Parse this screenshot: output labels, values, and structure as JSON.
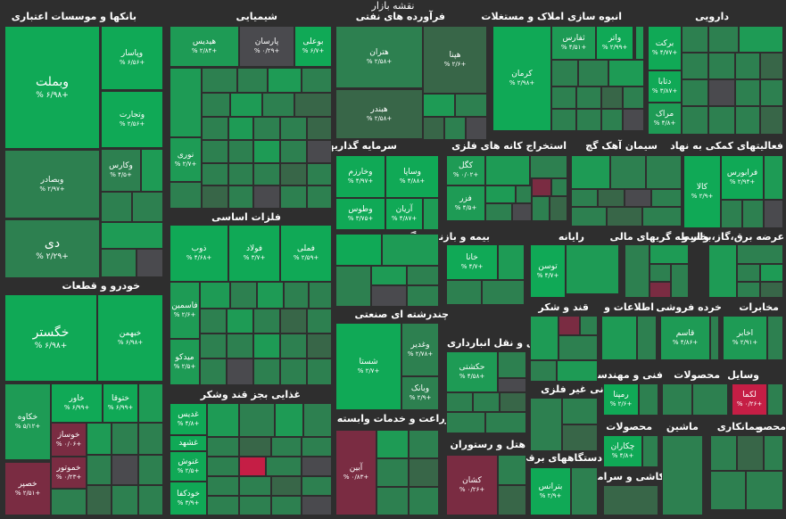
{
  "title": "نقشه بازار",
  "colors": {
    "strong_green": "#10a956",
    "green": "#1e9b55",
    "mid_green": "#2d8050",
    "dark_green": "#386648",
    "neutral": "#4a4a4e",
    "red": "#7a2c42",
    "bright_red": "#c51e45",
    "background": "#2e2e2e"
  },
  "sectors": {
    "banks": "بانکها و موسسات اعتباری",
    "chemical": "شیمیایی",
    "oil": "فرآورده های نفتی",
    "realestate": "انبوه سازی املاک و مستغلات",
    "pharma": "دارویی",
    "investment": "سرمایه گذاریها",
    "metal_ext": "استخراج کانه های فلزی",
    "cement": "سیمان آهک گچ",
    "aux_finance": "فعالیتهای کمکی به نهاد",
    "basic_metals": "فلزات اساسی",
    "insurance": "بیمه و بازنشستگی",
    "computer": "رایانه",
    "fin_intermed": "واسطه گریهای مالی",
    "utility": "عرضه برق،گاز،بخار و",
    "auto": "خودرو و قطعات",
    "sugar": "قند و شکر",
    "telecom": "اطلاعات و",
    "retail": "خرده فروشی",
    "comm": "مخابرات",
    "multi": "چندرشته ای صنعتی",
    "transport": "حمل و نقل انبارداری",
    "food": "غذایی بجز قند وشکر",
    "nonmetal": "کانی غیر فلزی",
    "engineering": "فنی و مهندسی",
    "products": "محصولات",
    "vehicles": "وسایل",
    "agri": "زراعت و خدمات وابسته",
    "hotel": "هتل و رستوران",
    "products2": "محصولات",
    "machinery": "ماشین",
    "insurance2": "بیمانکاری",
    "crops": "محصو",
    "elec_devices": "دستگاههای برقی",
    "tiles": "کاشی و سرامیک"
  },
  "tiles": {
    "vbmellat": {
      "symbol": "وبملت",
      "pct": "% ۶/۹۸+"
    },
    "vbsader": {
      "symbol": "وبصادر",
      "pct": "% ۲/۹۷+"
    },
    "dey": {
      "symbol": "دی",
      "pct": "% ۲/۲۹+"
    },
    "vpasar": {
      "symbol": "وپاسار",
      "pct": "% ۶/۵۶+"
    },
    "vtejarat": {
      "symbol": "وتجارت",
      "pct": "% ۲/۵۶+"
    },
    "vkaris": {
      "symbol": "وکارس",
      "pct": "% ۴/۵+"
    },
    "hedis": {
      "symbol": "هیدیس",
      "pct": "% ۲/۸۴+"
    },
    "parsan": {
      "symbol": "پارسان",
      "pct": "% ۰/۲۹+"
    },
    "boali": {
      "symbol": "بوعلی",
      "pct": "% ۶/۷+"
    },
    "nouri": {
      "symbol": "نوری",
      "pct": "% ۲/۷+"
    },
    "hetran": {
      "symbol": "هتران",
      "pct": "% ۲/۵۸+"
    },
    "hbndr": {
      "symbol": "هبندر",
      "pct": "% ۲/۵۸+"
    },
    "hpina": {
      "symbol": "هپنا",
      "pct": "% ۲/۶+"
    },
    "tfars": {
      "symbol": "ثفارس",
      "pct": "% ۴/۵۱+"
    },
    "vaatar": {
      "symbol": "واتر",
      "pct": "% ۲/۹۹+"
    },
    "kerman": {
      "symbol": "کرمان",
      "pct": "% ۲/۹۸+"
    },
    "barket": {
      "symbol": "برکت",
      "pct": "% ۴/۷۷+"
    },
    "dtaba": {
      "symbol": "دتابا",
      "pct": "% ۳/۸۷+"
    },
    "merak": {
      "symbol": "مراک",
      "pct": "% ۴/۸+"
    },
    "vkharaz": {
      "symbol": "وخارزم",
      "pct": "% ۴/۹۷+"
    },
    "vsapa": {
      "symbol": "وساپا",
      "pct": "% ۴/۸۸+"
    },
    "vatoosi": {
      "symbol": "وطوس",
      "pct": "% ۳/۷۵+"
    },
    "arian": {
      "symbol": "آریان",
      "pct": "% ۴/۸۷+"
    },
    "kegel": {
      "symbol": "کگل",
      "pct": "% ۰/۰۲+"
    },
    "fazar": {
      "symbol": "فزر",
      "pct": "% ۴/۵+"
    },
    "kala": {
      "symbol": "کالا",
      "pct": "% ۲/۹+"
    },
    "faraboors": {
      "symbol": "فرابورس",
      "pct": "% ۲/۹۴+"
    },
    "foolad": {
      "symbol": "فولاد",
      "pct": "% ۳/۷+"
    },
    "zob": {
      "symbol": "ذوب",
      "pct": "% ۴/۶۸+"
    },
    "fameli": {
      "symbol": "فملی",
      "pct": "% ۲/۵۹+"
    },
    "khana": {
      "symbol": "خانا",
      "pct": "% ۴/۷+"
    },
    "tosan": {
      "symbol": "توسن",
      "pct": "% ۴/۷+"
    },
    "khegostar": {
      "symbol": "خگستر",
      "pct": "% ۶/۹۸+"
    },
    "khbahman": {
      "symbol": "خبهمن",
      "pct": "% ۶/۹۸+"
    },
    "khakava": {
      "symbol": "خکاوه",
      "pct": "% ۵/۱۲+"
    },
    "khavar": {
      "symbol": "خاور",
      "pct": "% ۶/۹۹+"
    },
    "khtoogha": {
      "symbol": "ختوقا",
      "pct": "% ۶/۹۹+"
    },
    "khozamiaz": {
      "symbol": "خوساز",
      "pct": "% ۰/۰۶+"
    },
    "khmotor": {
      "symbol": "خموتور",
      "pct": "% ۰/۲۳+"
    },
    "khsapa": {
      "symbol": "خصپر",
      "pct": "% ۲/۵۱+"
    },
    "faseamin": {
      "symbol": "فاسمین",
      "pct": "% ۲/۶+"
    },
    "midko": {
      "symbol": "میدکو",
      "pct": "% ۲/۵+"
    },
    "ghadis": {
      "symbol": "غدیس",
      "pct": "% ۴/۸+"
    },
    "ghshahd": {
      "symbol": "غشهد",
      "pct": "% ۳/۵+"
    },
    "ghnoosh": {
      "symbol": "غنوش",
      "pct": "% ۲/۵+"
    },
    "khoodkfa": {
      "symbol": "خودکفا",
      "pct": "% ۳/۹+"
    },
    "shasta": {
      "symbol": "شستا",
      "pct": "% ۲/۷+"
    },
    "vghadir": {
      "symbol": "وغدیر",
      "pct": "% ۲/۷۸+"
    },
    "vbank": {
      "symbol": "وبانک",
      "pct": "% ۲/۹+"
    },
    "hkeshti": {
      "symbol": "حکشتی",
      "pct": "% ۴/۵۸+"
    },
    "abin": {
      "symbol": "آبین",
      "pct": "% ۰/۸۳+"
    },
    "kashan": {
      "symbol": "کشان",
      "pct": "% ۰/۲۶+"
    },
    "ghamam": {
      "symbol": "قاسم",
      "pct": "% ۴/۸۶+"
    },
    "akhaber": {
      "symbol": "اخابر",
      "pct": "% ۲/۹۱+"
    },
    "rampna": {
      "symbol": "رمپنا",
      "pct": "% ۲/۶+"
    },
    "lekama": {
      "symbol": "لکما",
      "pct": "% ۰/۲۶+"
    },
    "chakaran": {
      "symbol": "چکاران",
      "pct": "% ۴/۸+"
    },
    "btranis": {
      "symbol": "بترانس",
      "pct": "% ۲/۹+"
    }
  }
}
